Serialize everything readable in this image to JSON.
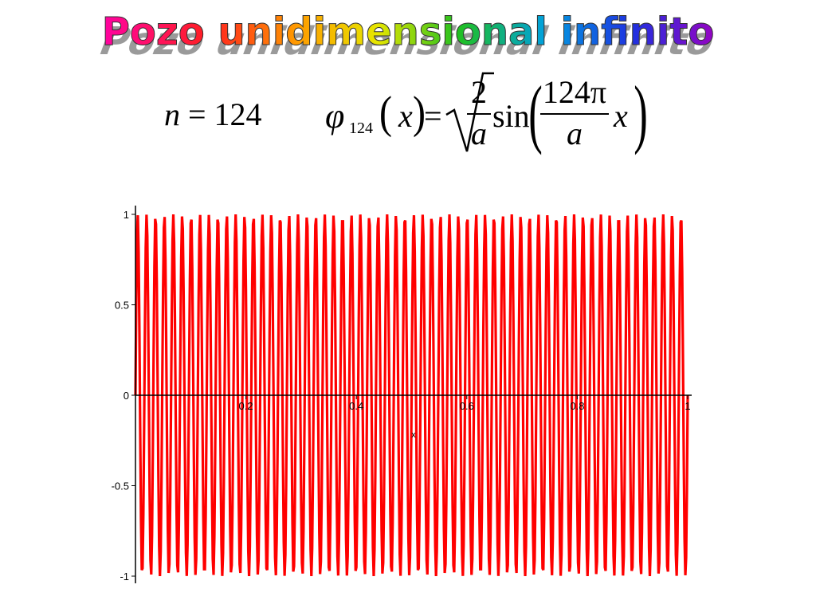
{
  "title": "Pozo unidimensional infinito",
  "equation": {
    "n_label": "n",
    "n_eq": "= 124",
    "phi": "φ",
    "phi_sub": "124",
    "arg": "x",
    "equals": "=",
    "sqrt_num": "2",
    "sqrt_den": "a",
    "sin": "sin",
    "frac_num": "124π",
    "frac_den": "a",
    "trail_x": "x"
  },
  "chart_data": {
    "type": "line",
    "function": "sin(124*pi*x)",
    "n": 124,
    "x_range": [
      0,
      1
    ],
    "ylim": [
      -1,
      1
    ],
    "x_ticks": [
      "0.2",
      "0.4",
      "0.6",
      "0.8",
      "1"
    ],
    "y_ticks": [
      "1",
      "0.5",
      "0",
      "-0.5",
      "-1"
    ],
    "xlabel": "x",
    "color": "#ff0000"
  }
}
